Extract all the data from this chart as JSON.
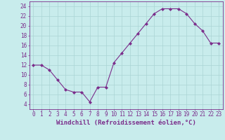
{
  "x": [
    0,
    1,
    2,
    3,
    4,
    5,
    6,
    7,
    8,
    9,
    10,
    11,
    12,
    13,
    14,
    15,
    16,
    17,
    18,
    19,
    20,
    21,
    22,
    23
  ],
  "y": [
    12,
    12,
    11,
    9,
    7,
    6.5,
    6.5,
    4.5,
    7.5,
    7.5,
    12.5,
    14.5,
    16.5,
    18.5,
    20.5,
    22.5,
    23.5,
    23.5,
    23.5,
    22.5,
    20.5,
    19,
    16.5,
    16.5
  ],
  "line_color": "#7b2d8b",
  "marker": "D",
  "marker_size": 2,
  "bg_color": "#c8ecec",
  "grid_color": "#aad4d4",
  "xlabel": "Windchill (Refroidissement éolien,°C)",
  "xlim": [
    -0.5,
    23.5
  ],
  "ylim": [
    3,
    25
  ],
  "yticks": [
    4,
    6,
    8,
    10,
    12,
    14,
    16,
    18,
    20,
    22,
    24
  ],
  "xticks": [
    0,
    1,
    2,
    3,
    4,
    5,
    6,
    7,
    8,
    9,
    10,
    11,
    12,
    13,
    14,
    15,
    16,
    17,
    18,
    19,
    20,
    21,
    22,
    23
  ],
  "tick_color": "#7b2d8b",
  "axis_color": "#7b2d8b",
  "label_fontsize": 6.5,
  "tick_fontsize": 5.5
}
